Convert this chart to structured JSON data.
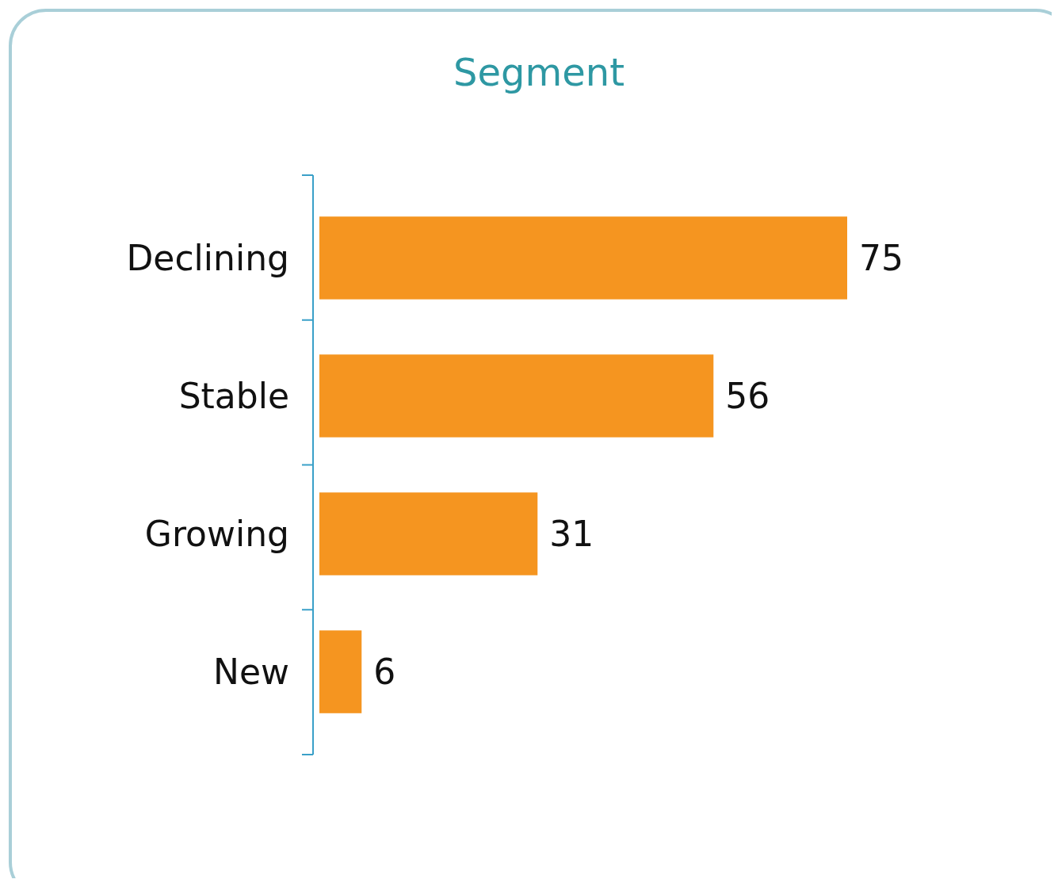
{
  "chart_data": {
    "type": "bar",
    "orientation": "horizontal",
    "title": "Segment",
    "categories": [
      "Declining",
      "Stable",
      "Growing",
      "New"
    ],
    "values": [
      75,
      56,
      31,
      6
    ],
    "color": "#f59520",
    "data_labels": true
  }
}
